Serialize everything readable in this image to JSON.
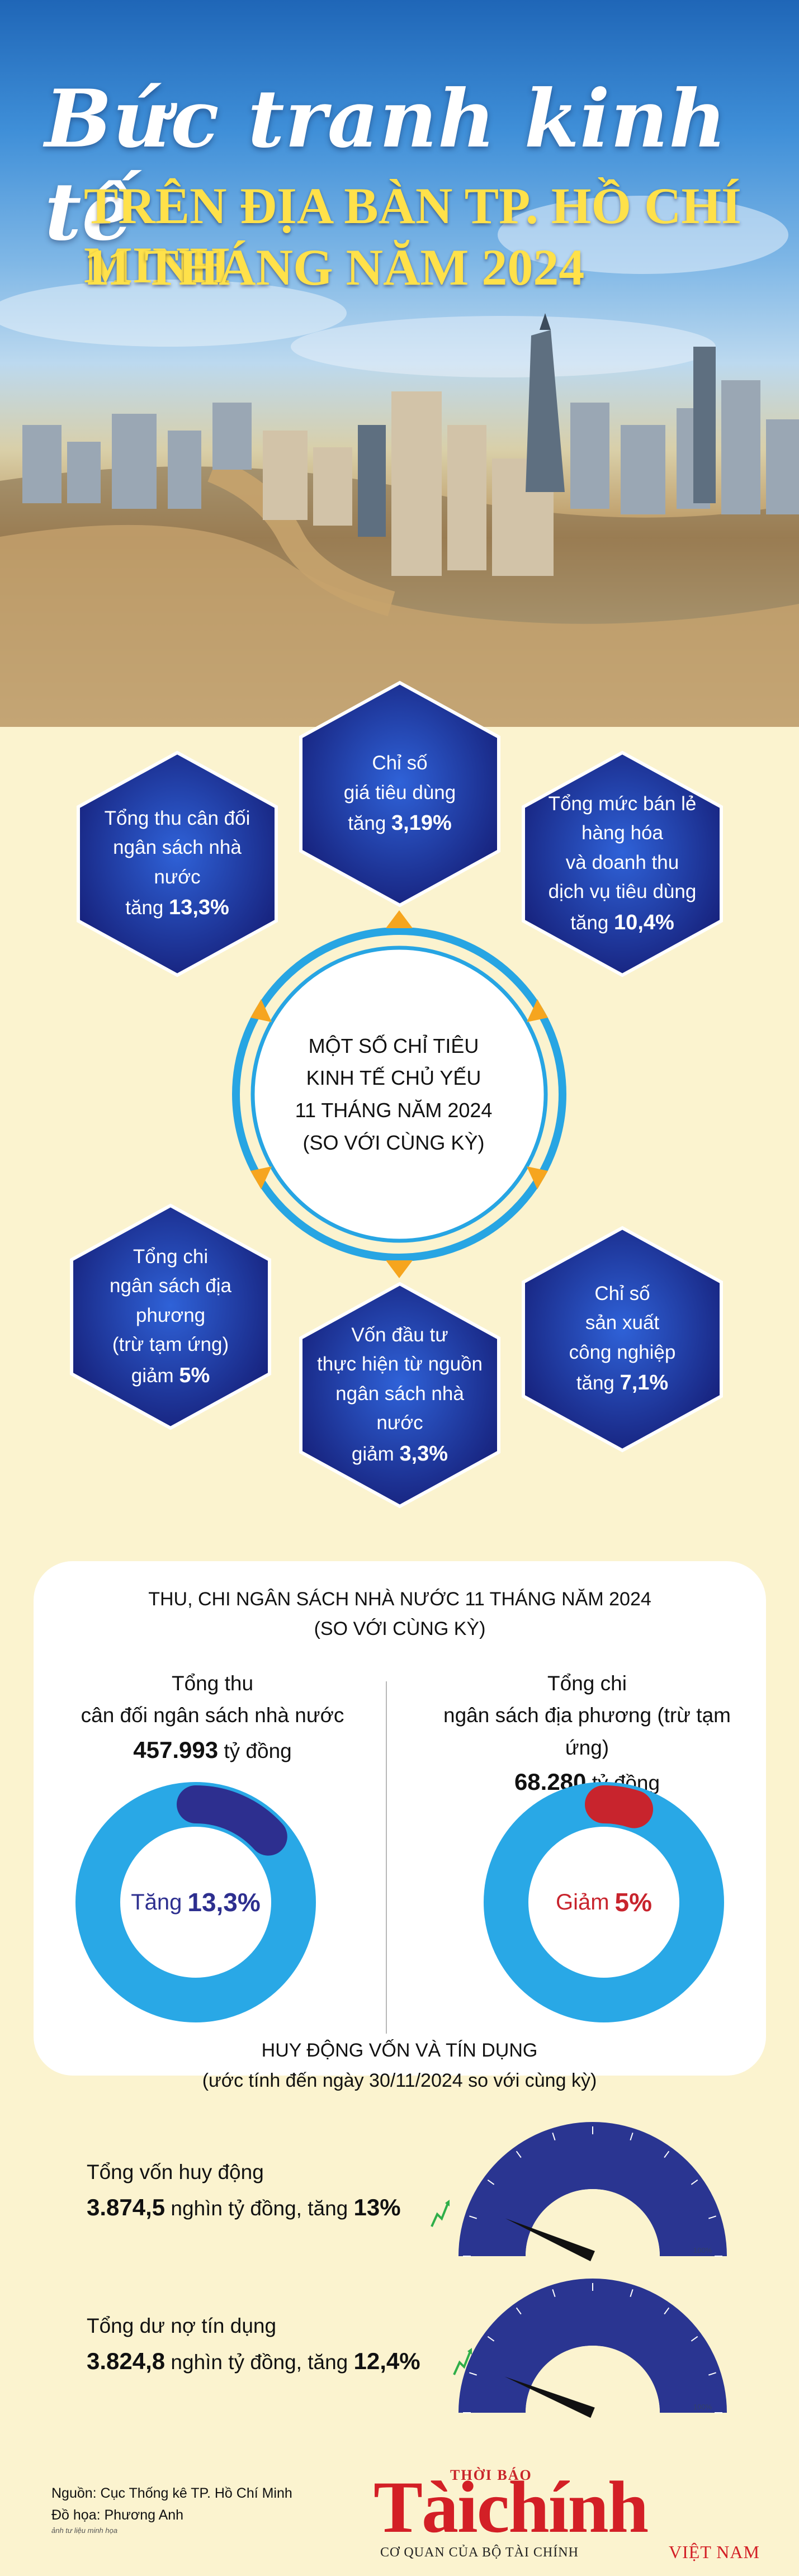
{
  "title": {
    "script": "Bức tranh kinh tế",
    "line1": "TRÊN ĐỊA BÀN TP. HỒ CHÍ MINH",
    "line2": "11 THÁNG NĂM 2024"
  },
  "indicators": {
    "center_lines": [
      "MỘT SỐ CHỈ TIÊU",
      "KINH TẾ CHỦ YẾU",
      "11 THÁNG NĂM 2024",
      "(SO VỚI CÙNG KỲ)"
    ],
    "cpi": {
      "lines": [
        "Chỉ số",
        "giá tiêu dùng"
      ],
      "prefix": "tăng",
      "value": "3,19%"
    },
    "budget_revenue": {
      "lines": [
        "Tổng thu cân đối",
        "ngân sách nhà nước"
      ],
      "prefix": "tăng",
      "value": "13,3%"
    },
    "retail": {
      "lines": [
        "Tổng mức bán lẻ",
        "hàng hóa",
        "và doanh thu",
        "dịch vụ tiêu dùng"
      ],
      "prefix": "tăng",
      "value": "10,4%"
    },
    "local_spending": {
      "lines": [
        "Tổng chi",
        "ngân sách địa phương",
        "(trừ tạm ứng)"
      ],
      "prefix": "giảm",
      "value": "5%"
    },
    "investment": {
      "lines": [
        "Vốn đầu tư",
        "thực hiện từ nguồn",
        "ngân sách nhà nước"
      ],
      "prefix": "giảm",
      "value": "3,3%"
    },
    "industry": {
      "lines": [
        "Chỉ số",
        "sản xuất",
        "công nghiệp"
      ],
      "prefix": "tăng",
      "value": "7,1%"
    }
  },
  "budget": {
    "title_line1": "THU, CHI NGÂN SÁCH NHÀ NƯỚC 11 THÁNG NĂM 2024",
    "title_line2": "(SO VỚI CÙNG KỲ)",
    "revenue": {
      "label_line1": "Tổng thu",
      "label_line2": "cân đối ngân sách nhà nước",
      "amount": "457.993",
      "unit": "tỷ đồng",
      "change_prefix": "Tăng",
      "change_value": "13,3%",
      "change_fraction": 0.133,
      "color": "#2d2f8f"
    },
    "spending": {
      "label_line1": "Tổng chi",
      "label_line2": "ngân sách địa phương (trừ tạm ứng)",
      "amount": "68.280",
      "unit": "tỷ đồng",
      "change_prefix": "Giảm",
      "change_value": "5%",
      "change_fraction": 0.05,
      "color": "#c8242d"
    },
    "ring_color": "#29a8e6"
  },
  "credit": {
    "title_line1": "HUY ĐỘNG VỐN VÀ TÍN DỤNG",
    "title_line2": "(ước tính đến ngày 30/11/2024 so với cùng kỳ)",
    "mobilized": {
      "label": "Tổng vốn huy động",
      "amount": "3.874,5",
      "unit_text": "nghìn tỷ đồng, tăng",
      "change": "13%",
      "change_fraction": 0.13
    },
    "loans": {
      "label": "Tổng dư nợ tín dụng",
      "amount": "3.824,8",
      "unit_text": "nghìn tỷ đồng, tăng",
      "change": "12,4%",
      "change_fraction": 0.124
    },
    "scale_max": "100%",
    "gauge_color": "#2a3591"
  },
  "footer": {
    "source": "Nguồn: Cục Thống kê TP. Hồ Chí Minh",
    "design": "Đồ họa: Phương Anh",
    "small_credit": "ảnh tư liệu minh họa",
    "logo_top": "THỜI BÁO",
    "logo_main": "Tàichính",
    "logo_sub": "CƠ QUAN CỦA BỘ TÀI CHÍNH",
    "logo_vn": "VIỆT NAM"
  }
}
